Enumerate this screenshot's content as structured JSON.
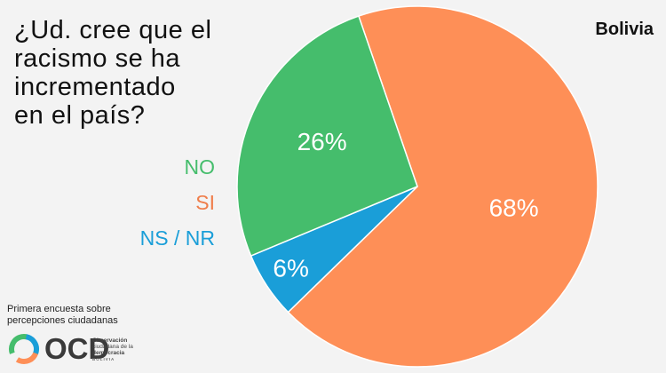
{
  "title_lines": [
    "¿Ud. cree que el",
    "racismo se ha",
    "incrementado",
    "en el país?"
  ],
  "country": "Bolivia",
  "chart_data": {
    "type": "pie",
    "title": "¿Ud. cree que el racismo se ha incrementado en el país?",
    "slices": [
      {
        "label": "SI",
        "value": 68,
        "display": "68%",
        "color": "#fe8f57"
      },
      {
        "label": "NS / NR",
        "value": 6,
        "display": "6%",
        "color": "#1a9ed8"
      },
      {
        "label": "NO",
        "value": 26,
        "display": "26%",
        "color": "#45bd6c"
      }
    ],
    "legend": [
      {
        "label": "NO",
        "color": "#45bd6c"
      },
      {
        "label": "SI",
        "color": "#ef7d4a"
      },
      {
        "label": "NS / NR",
        "color": "#1a9ed8"
      }
    ],
    "legend_placement": "left"
  },
  "footer": {
    "lines": [
      "Primera encuesta sobre",
      "percepciones ciudadanas"
    ],
    "logo": {
      "letters": "OCD",
      "tagline": [
        "Observación",
        "ciudadana de la",
        "democracia"
      ],
      "country": "BOLIVIA"
    }
  }
}
